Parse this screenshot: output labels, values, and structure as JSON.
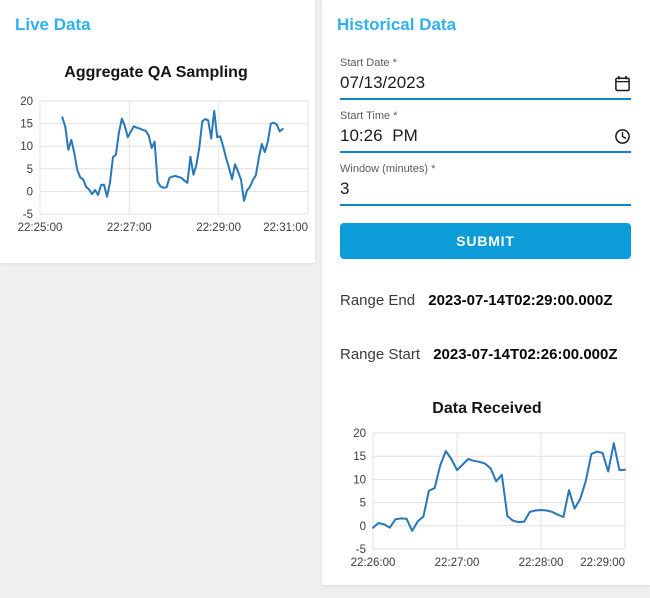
{
  "left_panel": {
    "title": "Live Data"
  },
  "right_panel": {
    "title": "Historical Data",
    "form": {
      "start_date": {
        "label": "Start Date *",
        "value": "07/13/2023",
        "icon": "calendar-icon"
      },
      "start_time": {
        "label": "Start Time *",
        "value": "10:26 PM",
        "icon": "clock-icon"
      },
      "window": {
        "label": "Window (minutes) *",
        "value": "3"
      },
      "submit_label": "SUBMIT"
    },
    "range_end": {
      "label": "Range End",
      "value": "2023-07-14T02:29:00.000Z"
    },
    "range_start": {
      "label": "Range Start",
      "value": "2023-07-14T02:26:00.000Z"
    }
  },
  "colors": {
    "heading_blue": "#2eb1ee",
    "button_blue": "#0c9cd8",
    "underline_blue": "#0d86cb",
    "line_blue": "#2878b8",
    "grid_gray": "#e2e2e2",
    "page_background": "#efefef"
  },
  "chart_data": [
    {
      "type": "line",
      "title": "Aggregate QA Sampling",
      "xlabel": "",
      "ylabel": "",
      "x_tick_labels": [
        "22:25:00",
        "22:27:00",
        "22:29:00",
        "22:31:00"
      ],
      "x_tick_seconds": [
        0,
        120,
        240,
        360
      ],
      "x_range_seconds": [
        0,
        360
      ],
      "y_ticks": [
        20,
        15,
        10,
        5,
        0,
        -5
      ],
      "ylim": [
        -5,
        20
      ],
      "grid": true,
      "legend": false,
      "line_color": "#2878b8",
      "series_start_second": 30,
      "series_step_seconds": 4,
      "values": [
        16.4,
        14.3,
        9.2,
        11.4,
        8.6,
        4.8,
        3.1,
        2.6,
        1.0,
        0.4,
        -0.6,
        0.3,
        -0.8,
        1.4,
        1.5,
        -1.2,
        2.0,
        7.6,
        8.1,
        13.0,
        16.1,
        14.4,
        12.0,
        13.2,
        14.4,
        14.1,
        13.9,
        13.6,
        13.4,
        12.4,
        9.6,
        11.0,
        2.1,
        1.1,
        0.8,
        0.9,
        3.0,
        3.3,
        3.4,
        3.2,
        3.0,
        2.4,
        1.9,
        7.7,
        3.7,
        5.8,
        9.7,
        15.5,
        16.0,
        15.7,
        11.7,
        17.8,
        12.0,
        12.2,
        10.0,
        7.4,
        5.1,
        2.7,
        6.0,
        4.4,
        2.6,
        -2.1,
        0.2,
        1.0,
        2.5,
        3.6,
        7.5,
        10.5,
        8.7,
        11.0,
        15.0,
        15.2,
        14.8,
        13.3,
        13.8
      ]
    },
    {
      "type": "line",
      "title": "Data Received",
      "xlabel": "",
      "ylabel": "",
      "x_tick_labels": [
        "22:26:00",
        "22:27:00",
        "22:28:00",
        "22:29:00"
      ],
      "x_tick_seconds": [
        0,
        60,
        120,
        180
      ],
      "x_range_seconds": [
        0,
        180
      ],
      "y_ticks": [
        20,
        15,
        10,
        5,
        0,
        -5
      ],
      "ylim": [
        -5,
        20
      ],
      "grid": true,
      "legend": false,
      "line_color": "#2878b8",
      "series_start_second": 0,
      "series_step_seconds": 4,
      "values": [
        -0.4,
        0.6,
        0.3,
        -0.4,
        1.4,
        1.6,
        1.5,
        -1.1,
        1.0,
        2.0,
        7.6,
        8.1,
        13.0,
        16.1,
        14.4,
        12.0,
        13.2,
        14.4,
        14.0,
        13.8,
        13.4,
        12.4,
        9.6,
        11.0,
        2.1,
        1.1,
        0.8,
        0.9,
        3.0,
        3.3,
        3.4,
        3.3,
        3.0,
        2.4,
        1.9,
        7.7,
        3.7,
        5.8,
        9.7,
        15.5,
        16.0,
        15.7,
        11.7,
        17.8,
        12.0,
        12.1
      ]
    }
  ]
}
